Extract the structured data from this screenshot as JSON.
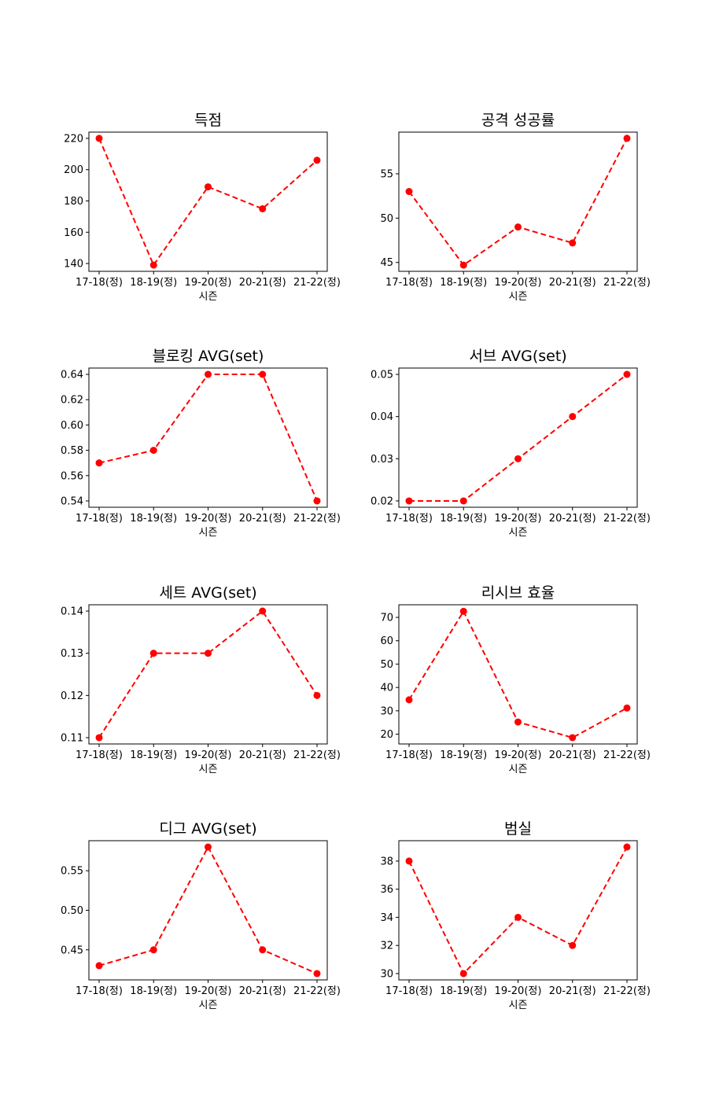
{
  "chart_data": [
    {
      "type": "line",
      "title": "득점",
      "xlabel": "시즌",
      "ylabel": "",
      "categories": [
        "17-18(정)",
        "18-19(정)",
        "19-20(정)",
        "20-21(정)",
        "21-22(정)"
      ],
      "values": [
        220,
        139,
        189,
        175,
        206
      ],
      "ylim": [
        135,
        224
      ],
      "yticks": [
        140,
        160,
        180,
        200,
        220
      ],
      "ytick_labels": [
        "140",
        "160",
        "180",
        "200",
        "220"
      ],
      "color": "#ff0000",
      "line_style": "dashed",
      "marker": "circle",
      "grid": false
    },
    {
      "type": "line",
      "title": "공격 성공률",
      "xlabel": "시즌",
      "ylabel": "",
      "categories": [
        "17-18(정)",
        "18-19(정)",
        "19-20(정)",
        "20-21(정)",
        "21-22(정)"
      ],
      "values": [
        53,
        44.7,
        49,
        47.2,
        59
      ],
      "ylim": [
        44.0,
        59.7
      ],
      "yticks": [
        45,
        50,
        55
      ],
      "ytick_labels": [
        "45",
        "50",
        "55"
      ],
      "color": "#ff0000",
      "line_style": "dashed",
      "marker": "circle",
      "grid": false
    },
    {
      "type": "line",
      "title": "블로킹 AVG(set)",
      "xlabel": "시즌",
      "ylabel": "",
      "categories": [
        "17-18(정)",
        "18-19(정)",
        "19-20(정)",
        "20-21(정)",
        "21-22(정)"
      ],
      "values": [
        0.57,
        0.58,
        0.64,
        0.64,
        0.54
      ],
      "ylim": [
        0.535,
        0.645
      ],
      "yticks": [
        0.54,
        0.56,
        0.58,
        0.6,
        0.62,
        0.64
      ],
      "ytick_labels": [
        "0.54",
        "0.56",
        "0.58",
        "0.60",
        "0.62",
        "0.64"
      ],
      "color": "#ff0000",
      "line_style": "dashed",
      "marker": "circle",
      "grid": false
    },
    {
      "type": "line",
      "title": "서브 AVG(set)",
      "xlabel": "시즌",
      "ylabel": "",
      "categories": [
        "17-18(정)",
        "18-19(정)",
        "19-20(정)",
        "20-21(정)",
        "21-22(정)"
      ],
      "values": [
        0.02,
        0.02,
        0.03,
        0.04,
        0.05
      ],
      "ylim": [
        0.0185,
        0.0515
      ],
      "yticks": [
        0.02,
        0.03,
        0.04,
        0.05
      ],
      "ytick_labels": [
        "0.02",
        "0.03",
        "0.04",
        "0.05"
      ],
      "color": "#ff0000",
      "line_style": "dashed",
      "marker": "circle",
      "grid": false
    },
    {
      "type": "line",
      "title": "세트 AVG(set)",
      "xlabel": "시즌",
      "ylabel": "",
      "categories": [
        "17-18(정)",
        "18-19(정)",
        "19-20(정)",
        "20-21(정)",
        "21-22(정)"
      ],
      "values": [
        0.11,
        0.13,
        0.13,
        0.14,
        0.12
      ],
      "ylim": [
        0.1085,
        0.1415
      ],
      "yticks": [
        0.11,
        0.12,
        0.13,
        0.14
      ],
      "ytick_labels": [
        "0.11",
        "0.12",
        "0.13",
        "0.14"
      ],
      "color": "#ff0000",
      "line_style": "dashed",
      "marker": "circle",
      "grid": false
    },
    {
      "type": "line",
      "title": "리시브 효율",
      "xlabel": "시즌",
      "ylabel": "",
      "categories": [
        "17-18(정)",
        "18-19(정)",
        "19-20(정)",
        "20-21(정)",
        "21-22(정)"
      ],
      "values": [
        34.7,
        72.6,
        25.2,
        18.5,
        31.2
      ],
      "ylim": [
        15.8,
        75.4
      ],
      "yticks": [
        20,
        30,
        40,
        50,
        60,
        70
      ],
      "ytick_labels": [
        "20",
        "30",
        "40",
        "50",
        "60",
        "70"
      ],
      "color": "#ff0000",
      "line_style": "dashed",
      "marker": "circle",
      "grid": false
    },
    {
      "type": "line",
      "title": "디그 AVG(set)",
      "xlabel": "시즌",
      "ylabel": "",
      "categories": [
        "17-18(정)",
        "18-19(정)",
        "19-20(정)",
        "20-21(정)",
        "21-22(정)"
      ],
      "values": [
        0.43,
        0.45,
        0.58,
        0.45,
        0.42
      ],
      "ylim": [
        0.412,
        0.588
      ],
      "yticks": [
        0.45,
        0.5,
        0.55
      ],
      "ytick_labels": [
        "0.45",
        "0.50",
        "0.55"
      ],
      "color": "#ff0000",
      "line_style": "dashed",
      "marker": "circle",
      "grid": false
    },
    {
      "type": "line",
      "title": "범실",
      "xlabel": "시즌",
      "ylabel": "",
      "categories": [
        "17-18(정)",
        "18-19(정)",
        "19-20(정)",
        "20-21(정)",
        "21-22(정)"
      ],
      "values": [
        38,
        30,
        34,
        32,
        39
      ],
      "ylim": [
        29.55,
        39.45
      ],
      "yticks": [
        30,
        32,
        34,
        36,
        38
      ],
      "ytick_labels": [
        "30",
        "32",
        "34",
        "36",
        "38"
      ],
      "color": "#ff0000",
      "line_style": "dashed",
      "marker": "circle",
      "grid": false
    }
  ]
}
